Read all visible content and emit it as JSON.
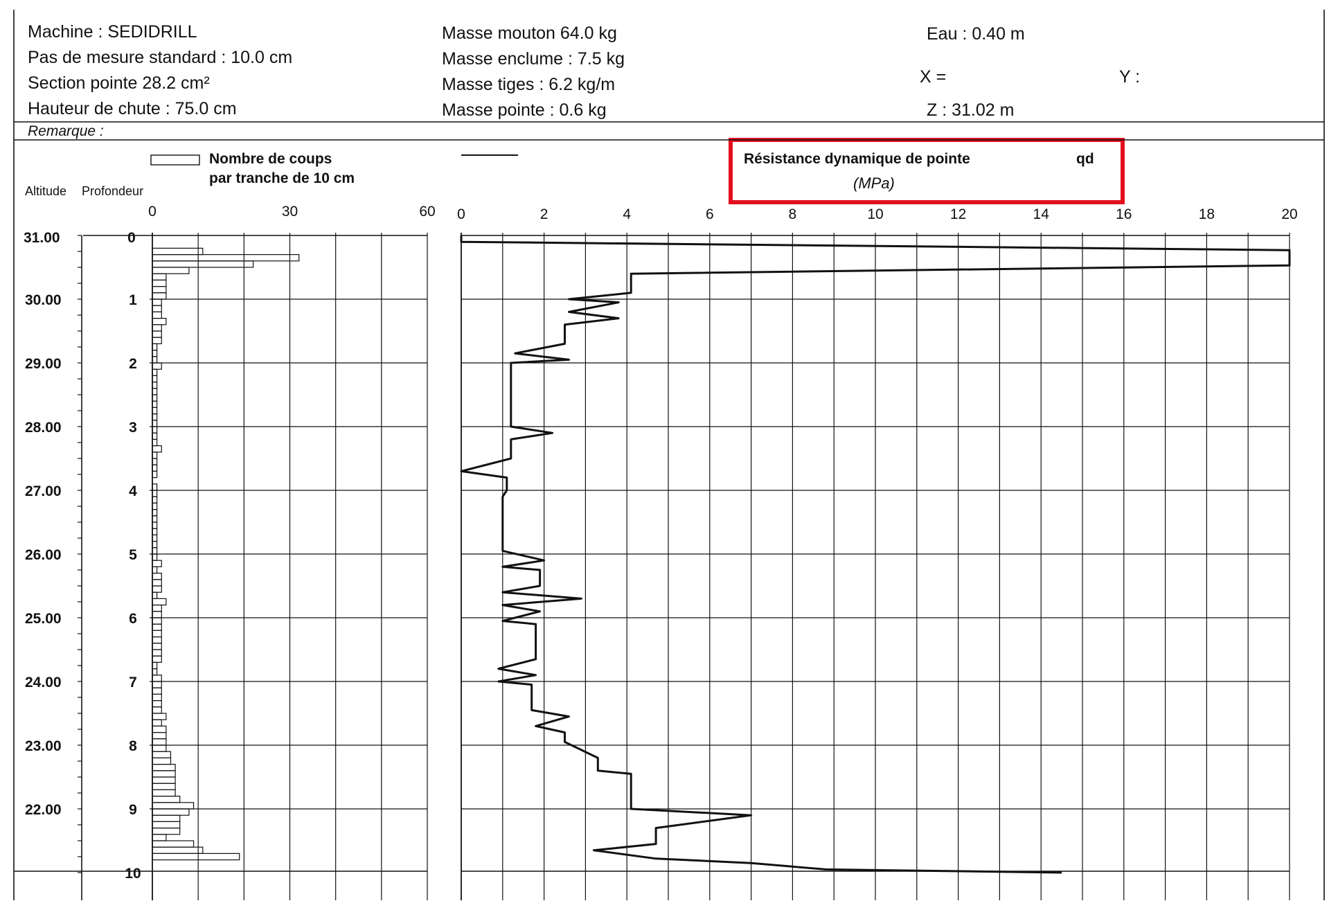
{
  "header": {
    "machine": "Machine : SEDIDRILL",
    "pas": "Pas de mesure standard : 10.0 cm",
    "section": "Section pointe 28.2 cm²",
    "hauteur": "Hauteur de chute : 75.0 cm",
    "remarque": "Remarque :",
    "masse_mouton": "Masse mouton 64.0 kg",
    "masse_enclume": "Masse enclume : 7.5 kg",
    "masse_tiges": "Masse tiges : 6.2 kg/m",
    "masse_pointe": "Masse pointe : 0.6 kg",
    "eau": "Eau : 0.40 m",
    "x": "X =",
    "y": "Y :",
    "z": "Z : 31.02 m"
  },
  "colors": {
    "ink": "#111111",
    "highlight": "#e3101e",
    "grid": "#222222"
  },
  "chart_data": [
    {
      "type": "bar",
      "orientation": "horizontal",
      "legend": [
        "Nombre de coups",
        "par tranche de 10 cm"
      ],
      "col_altitude": "Altitude",
      "col_profondeur": "Profondeur",
      "xlim": [
        0,
        60
      ],
      "x_ticks": [
        "0",
        "30",
        "60"
      ],
      "altitude_labels": [
        "30.00",
        "29.00",
        "28.00",
        "27.00",
        "26.00",
        "25.00",
        "24.00",
        "23.00",
        "22.00"
      ],
      "depth_labels": [
        "1",
        "2",
        "3",
        "4",
        "5",
        "6",
        "7",
        "8",
        "9",
        "10"
      ],
      "top_labels": {
        "altitude": "31.00",
        "depth": "0"
      },
      "ylim_depth_m": [
        0,
        10
      ],
      "bin_m": 0.1,
      "values": [
        11,
        32,
        22,
        8,
        3,
        3,
        3,
        3,
        2,
        2,
        2,
        3,
        2,
        2,
        2,
        1,
        1,
        1,
        2,
        1,
        1,
        1,
        1,
        1,
        1,
        1,
        1,
        1,
        1,
        1,
        1,
        2,
        1,
        1,
        1,
        1,
        0,
        1,
        1,
        1,
        1,
        1,
        1,
        1,
        1,
        1,
        1,
        1,
        1,
        2,
        1,
        2,
        2,
        2,
        1,
        3,
        2,
        2,
        2,
        2,
        2,
        2,
        2,
        2,
        2,
        1,
        1,
        2,
        2,
        2,
        2,
        2,
        2,
        3,
        2,
        3,
        3,
        3,
        3,
        4,
        4,
        5,
        5,
        5,
        5,
        5,
        6,
        9,
        8,
        6,
        6,
        6,
        3,
        9,
        11,
        19
      ]
    },
    {
      "type": "line",
      "title": "Résistance dynamique de pointe",
      "symbol": "qd",
      "unit": "(MPa)",
      "xlim": [
        0,
        20
      ],
      "x_ticks": [
        "0",
        "2",
        "4",
        "6",
        "8",
        "10",
        "12",
        "14",
        "16",
        "18",
        "20"
      ],
      "ylim_depth_m": [
        0,
        10
      ],
      "points": [
        [
          0,
          0
        ],
        [
          0,
          0.1
        ],
        [
          20,
          0.23
        ],
        [
          20,
          0.47
        ],
        [
          4.1,
          0.6
        ],
        [
          4.1,
          0.9
        ],
        [
          2.6,
          1.0
        ],
        [
          3.8,
          1.05
        ],
        [
          2.6,
          1.2
        ],
        [
          3.8,
          1.3
        ],
        [
          2.5,
          1.4
        ],
        [
          2.5,
          1.7
        ],
        [
          1.3,
          1.85
        ],
        [
          2.6,
          1.95
        ],
        [
          1.2,
          2.0
        ],
        [
          1.2,
          3.0
        ],
        [
          2.2,
          3.1
        ],
        [
          1.2,
          3.2
        ],
        [
          1.2,
          3.5
        ],
        [
          0,
          3.7
        ],
        [
          1.1,
          3.8
        ],
        [
          1.1,
          4.0
        ],
        [
          1.0,
          4.1
        ],
        [
          1.0,
          4.95
        ],
        [
          2.0,
          5.1
        ],
        [
          1.0,
          5.2
        ],
        [
          1.9,
          5.25
        ],
        [
          1.9,
          5.5
        ],
        [
          1.0,
          5.6
        ],
        [
          2.9,
          5.7
        ],
        [
          1.0,
          5.8
        ],
        [
          1.9,
          5.9
        ],
        [
          1.0,
          6.05
        ],
        [
          1.8,
          6.1
        ],
        [
          1.8,
          6.65
        ],
        [
          0.9,
          6.8
        ],
        [
          1.8,
          6.9
        ],
        [
          0.9,
          7.0
        ],
        [
          1.7,
          7.05
        ],
        [
          1.7,
          7.45
        ],
        [
          2.6,
          7.55
        ],
        [
          1.8,
          7.7
        ],
        [
          2.5,
          7.8
        ],
        [
          2.5,
          7.95
        ],
        [
          3.3,
          8.2
        ],
        [
          3.3,
          8.4
        ],
        [
          4.1,
          8.45
        ],
        [
          4.1,
          9.0
        ],
        [
          7.0,
          9.1
        ],
        [
          4.7,
          9.3
        ],
        [
          4.7,
          9.55
        ],
        [
          3.2,
          9.65
        ],
        [
          4.7,
          9.78
        ],
        [
          7.0,
          9.85
        ],
        [
          8.8,
          9.95
        ],
        [
          14.5,
          10.0
        ]
      ]
    }
  ]
}
